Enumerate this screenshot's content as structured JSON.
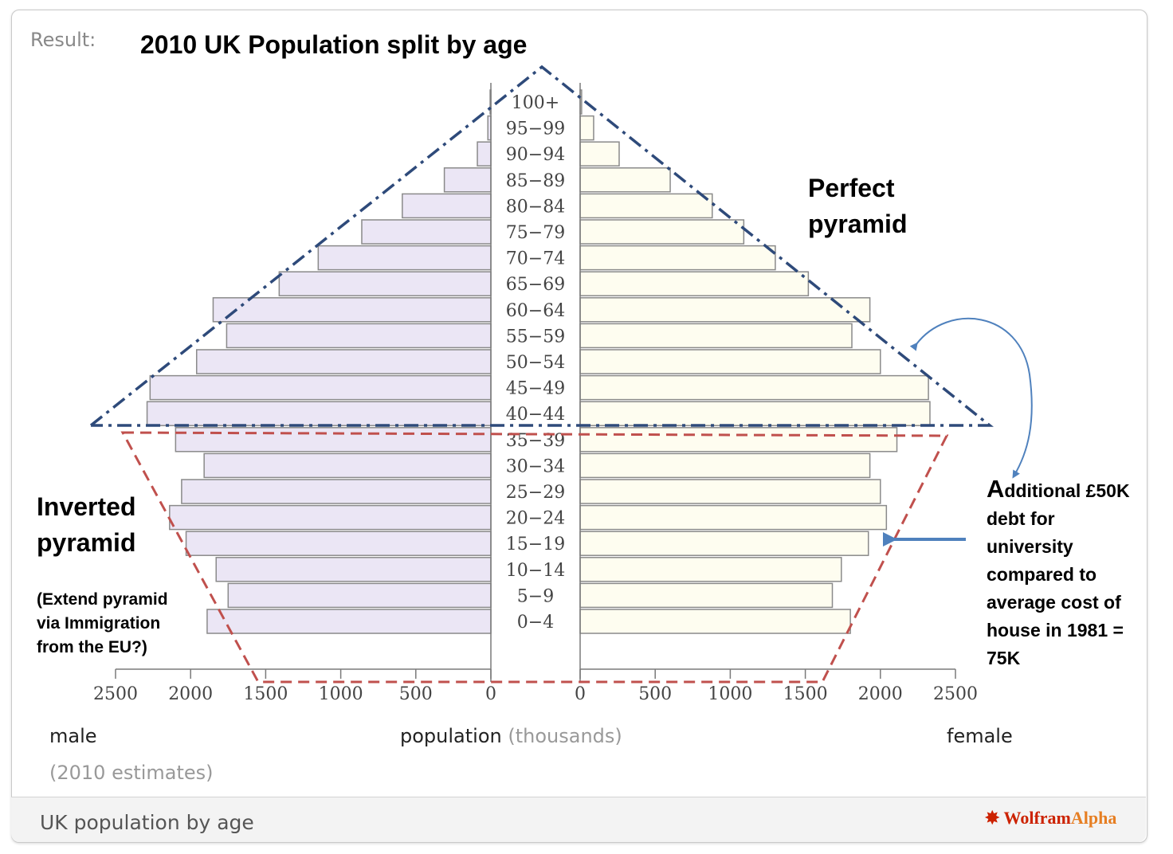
{
  "header": {
    "result_label": "Result:",
    "title": "2010 UK Population split by age"
  },
  "annotations": {
    "perfect_line1": "Perfect",
    "perfect_line2": "pyramid",
    "inverted_line1": "Inverted",
    "inverted_line2": "pyramid",
    "extend_line1": "(Extend  pyramid",
    "extend_line2": "via Immigration",
    "extend_line3": "from the EU?)",
    "debt_first_letter": "A",
    "debt_line1_rest": "dditional £50K",
    "debt_line2": "debt for",
    "debt_line3": "university",
    "debt_line4": "compared to",
    "debt_line5": "average cost of",
    "debt_line6": "house in 1981 =",
    "debt_line7": "75K"
  },
  "axis": {
    "male_label": "male",
    "female_label": "female",
    "xlabel_main": "population",
    "xlabel_unit": "(thousands)",
    "estimate_note": "(2010 estimates)"
  },
  "footer": {
    "title": "UK population by age",
    "logo_main": "Wolfram",
    "logo_alpha": "Alpha"
  },
  "colors": {
    "male_fill": "#ebe6f5",
    "female_fill": "#fefdf0",
    "bar_stroke": "#8a8a8a",
    "perfect_line": "#2e4a7a",
    "inverted_line": "#c0504d",
    "arrow": "#4f81bd"
  },
  "chart_data": {
    "type": "bar",
    "orientation": "horizontal",
    "categories": [
      "0-4",
      "5-9",
      "10-14",
      "15-19",
      "20-24",
      "25-29",
      "30-34",
      "35-39",
      "40-44",
      "45-49",
      "50-54",
      "55-59",
      "60-64",
      "65-69",
      "70-74",
      "75-79",
      "80-84",
      "85-89",
      "90-94",
      "95-99",
      "100+"
    ],
    "category_labels": [
      "0−4",
      "5−9",
      "10−14",
      "15−19",
      "20−24",
      "25−29",
      "30−34",
      "35−39",
      "40−44",
      "45−49",
      "50−54",
      "55−59",
      "60−64",
      "65−69",
      "70−74",
      "75−79",
      "80−84",
      "85−89",
      "90−94",
      "95−99",
      "100+"
    ],
    "series": [
      {
        "name": "male",
        "values": [
          1890,
          1750,
          1830,
          2030,
          2140,
          2060,
          1910,
          2100,
          2290,
          2270,
          1960,
          1760,
          1850,
          1410,
          1150,
          860,
          590,
          310,
          90,
          20,
          5
        ]
      },
      {
        "name": "female",
        "values": [
          1800,
          1680,
          1740,
          1920,
          2040,
          2000,
          1930,
          2110,
          2330,
          2320,
          2000,
          1810,
          1930,
          1520,
          1300,
          1090,
          880,
          600,
          260,
          90,
          10
        ]
      }
    ],
    "xlim": [
      0,
      2500
    ],
    "xticks": [
      2500,
      2000,
      1500,
      1000,
      500,
      0
    ],
    "xlabel": "population (thousands)"
  }
}
